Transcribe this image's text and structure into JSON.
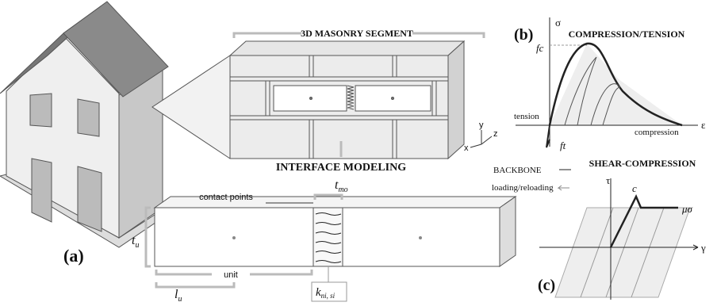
{
  "panel_a": {
    "label": "(a)",
    "title": "3D MASONRY SEGMENT",
    "axes": {
      "y": "y",
      "x": "x",
      "z": "z"
    },
    "subtitle": "INTERFACE MODELING",
    "contact_points": "contact points",
    "unit": "unit",
    "t_mo": {
      "main": "t",
      "sub": "mo"
    },
    "t_u": {
      "main": "t",
      "sub": "u"
    },
    "l_u": {
      "main": "l",
      "sub": "u"
    },
    "k": {
      "main": "k",
      "sub": "ni, si"
    }
  },
  "panel_b": {
    "label": "(b)",
    "title": "COMPRESSION/TENSION",
    "y_axis": "σ",
    "x_axis": "ε",
    "fc": "fc",
    "ft": "ft",
    "tension": "tension",
    "compression": "compression"
  },
  "panel_c": {
    "label": "(c)",
    "title": "SHEAR-COMPRESSION",
    "legend": [
      "BACKBONE",
      "loading/reloading"
    ],
    "y_axis": "τ",
    "x_axis": "γ",
    "c": "c",
    "mu_sigma": "μσ"
  }
}
